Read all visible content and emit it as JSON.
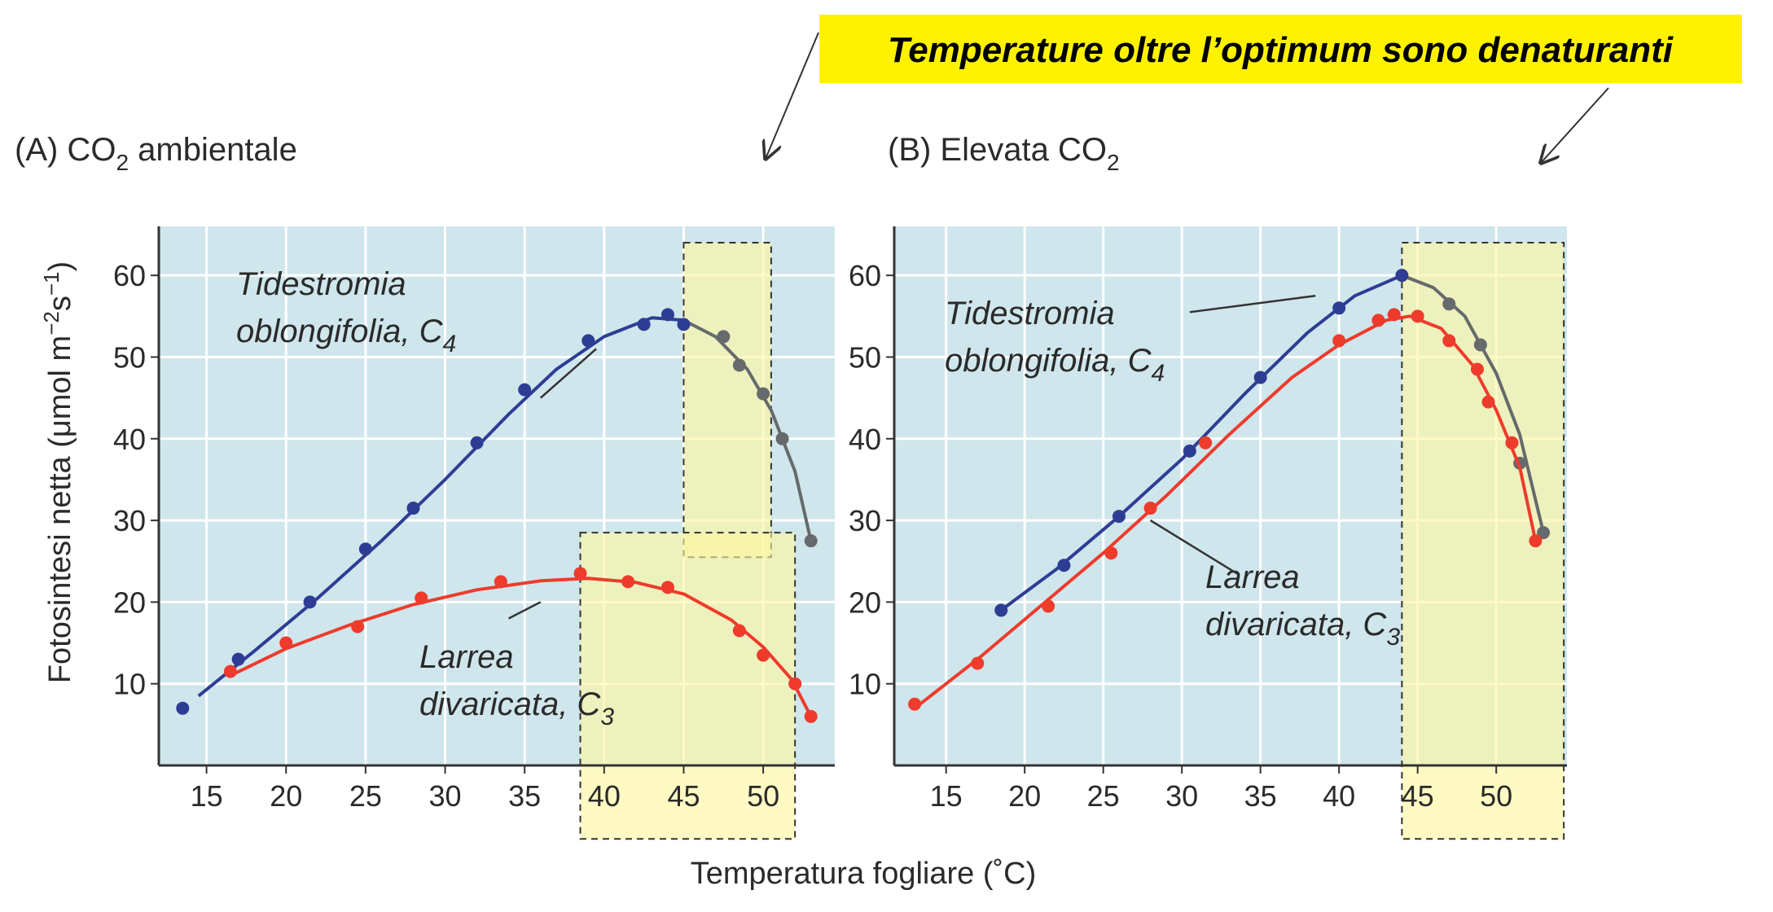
{
  "banner": {
    "text": "Temperature oltre l’optimum sono denaturanti",
    "color": "#fef200"
  },
  "y_axis_label": {
    "pre": "Fotosintesi netta (μmol m",
    "sup1": "−2",
    "s": "s",
    "sup2": "−1",
    "post": ")"
  },
  "x_axis_label": "Temperatura fogliare (˚C)",
  "colors": {
    "plot_bg": "#cfe6ec",
    "gridline": "#ffffff",
    "c4_line": "#2e3d94",
    "c3_line": "#ee3b2c",
    "denatured_line": "#666a6c",
    "highlight": "#fff7a0"
  },
  "chart_data": [
    {
      "type": "line",
      "panel": "A",
      "title": {
        "pre": "(A) CO",
        "sub": "2",
        "post": " ambientale"
      },
      "xlim": [
        12,
        54.5
      ],
      "ylim": [
        0,
        66
      ],
      "x_ticks": [
        15,
        20,
        25,
        30,
        35,
        40,
        45,
        50
      ],
      "y_ticks": [
        10,
        20,
        30,
        40,
        50,
        60
      ],
      "highlight_regions": [
        {
          "x": [
            45,
            50.5
          ],
          "y": [
            25.5,
            64
          ]
        },
        {
          "x": [
            38.5,
            52
          ],
          "y": [
            -9,
            28.5
          ]
        }
      ],
      "series": [
        {
          "label": {
            "line1": "Tidestromia",
            "line2": "oblongifolia, C",
            "sub": "4"
          },
          "color_key": "c4_line",
          "points": [
            [
              13.5,
              7
            ],
            [
              17,
              13
            ],
            [
              21.5,
              20
            ],
            [
              25,
              26.5
            ],
            [
              28,
              31.5
            ],
            [
              32,
              39.5
            ],
            [
              35,
              46
            ],
            [
              39,
              52
            ],
            [
              42.5,
              54
            ],
            [
              44,
              55.2
            ],
            [
              45,
              54
            ],
            [
              47.5,
              52.5
            ],
            [
              48.5,
              49
            ],
            [
              50,
              45.5
            ],
            [
              51.2,
              40
            ],
            [
              53,
              27.5
            ]
          ],
          "curve": [
            [
              14.5,
              8.5
            ],
            [
              18,
              14
            ],
            [
              22,
              20.5
            ],
            [
              26,
              27.5
            ],
            [
              30,
              35
            ],
            [
              34,
              43
            ],
            [
              37,
              48.5
            ],
            [
              40,
              52.5
            ],
            [
              43,
              54.8
            ],
            [
              45,
              54.5
            ],
            [
              47,
              52.5
            ],
            [
              49,
              48.5
            ],
            [
              50.5,
              43.5
            ],
            [
              52,
              36
            ],
            [
              53,
              27.5
            ]
          ],
          "split_x": 45
        },
        {
          "label": {
            "line1": "Larrea",
            "line2": "divaricata, C",
            "sub": "3"
          },
          "color_key": "c3_line",
          "points": [
            [
              16.5,
              11.5
            ],
            [
              20,
              15
            ],
            [
              24.5,
              17
            ],
            [
              28.5,
              20.5
            ],
            [
              33.5,
              22.5
            ],
            [
              38.5,
              23.5
            ],
            [
              41.5,
              22.5
            ],
            [
              44,
              21.8
            ],
            [
              48.5,
              16.5
            ],
            [
              50,
              13.5
            ],
            [
              52,
              10
            ],
            [
              53,
              6
            ]
          ],
          "curve": [
            [
              16.5,
              11
            ],
            [
              20,
              14.3
            ],
            [
              24,
              17.2
            ],
            [
              28,
              19.7
            ],
            [
              32,
              21.5
            ],
            [
              36,
              22.6
            ],
            [
              39,
              22.9
            ],
            [
              42,
              22.4
            ],
            [
              45,
              21
            ],
            [
              48,
              17.8
            ],
            [
              50,
              14.5
            ],
            [
              51.8,
              10.5
            ],
            [
              53,
              6
            ]
          ]
        }
      ],
      "annotation_leaders": [
        {
          "from": [
            39.5,
            51
          ],
          "to": [
            36,
            45
          ]
        },
        {
          "from": [
            36,
            20
          ],
          "to": [
            34,
            18
          ]
        }
      ]
    },
    {
      "type": "line",
      "panel": "B",
      "title": {
        "pre": "(B)  Elevata CO",
        "sub": "2",
        "post": ""
      },
      "xlim": [
        11.7,
        54.5
      ],
      "ylim": [
        0,
        66
      ],
      "x_ticks": [
        15,
        20,
        25,
        30,
        35,
        40,
        45,
        50
      ],
      "y_ticks": [
        10,
        20,
        30,
        40,
        50,
        60
      ],
      "highlight_regions": [
        {
          "x": [
            44,
            54.3
          ],
          "y": [
            -9,
            64
          ]
        }
      ],
      "series": [
        {
          "label": {
            "line1": "Tidestromia",
            "line2": "oblongifolia, C",
            "sub": "4"
          },
          "color_key": "c4_line",
          "points": [
            [
              18.5,
              19
            ],
            [
              22.5,
              24.5
            ],
            [
              26,
              30.5
            ],
            [
              30.5,
              38.5
            ],
            [
              35,
              47.5
            ],
            [
              40,
              56
            ],
            [
              44,
              60
            ],
            [
              47,
              56.5
            ],
            [
              49,
              51.5
            ],
            [
              51.5,
              37
            ],
            [
              53,
              28.5
            ]
          ],
          "curve": [
            [
              18.5,
              19
            ],
            [
              22,
              24
            ],
            [
              26,
              30.5
            ],
            [
              30,
              37.5
            ],
            [
              34,
              45.5
            ],
            [
              38,
              53
            ],
            [
              41,
              57.5
            ],
            [
              44,
              60
            ],
            [
              46,
              58.5
            ],
            [
              48,
              55
            ],
            [
              50,
              48
            ],
            [
              51.5,
              40.5
            ],
            [
              53,
              28.5
            ]
          ],
          "split_x": 44
        },
        {
          "label": {
            "line1": "Larrea",
            "line2": "divaricata, C",
            "sub": "3"
          },
          "color_key": "c3_line",
          "points": [
            [
              13,
              7.5
            ],
            [
              17,
              12.5
            ],
            [
              21.5,
              19.5
            ],
            [
              25.5,
              26
            ],
            [
              28,
              31.5
            ],
            [
              31.5,
              39.5
            ],
            [
              40,
              52
            ],
            [
              42.5,
              54.5
            ],
            [
              43.5,
              55.2
            ],
            [
              45,
              55
            ],
            [
              47,
              52
            ],
            [
              48.8,
              48.5
            ],
            [
              49.5,
              44.5
            ],
            [
              51,
              39.5
            ],
            [
              52.5,
              27.5
            ]
          ],
          "curve": [
            [
              13,
              7
            ],
            [
              17,
              13
            ],
            [
              21,
              19.5
            ],
            [
              25,
              26
            ],
            [
              29,
              33
            ],
            [
              33,
              40.5
            ],
            [
              37,
              47.5
            ],
            [
              40,
              51.5
            ],
            [
              43,
              54.5
            ],
            [
              44.5,
              55
            ],
            [
              46.5,
              53.5
            ],
            [
              48.5,
              49
            ],
            [
              50,
              43.5
            ],
            [
              51.5,
              36.5
            ],
            [
              52.5,
              27.5
            ]
          ]
        }
      ],
      "annotation_leaders": [
        {
          "from": [
            30.5,
            55.5
          ],
          "to": [
            38.5,
            57.5
          ]
        },
        {
          "from": [
            33.5,
            23.5
          ],
          "to": [
            28,
            30
          ]
        }
      ]
    }
  ]
}
